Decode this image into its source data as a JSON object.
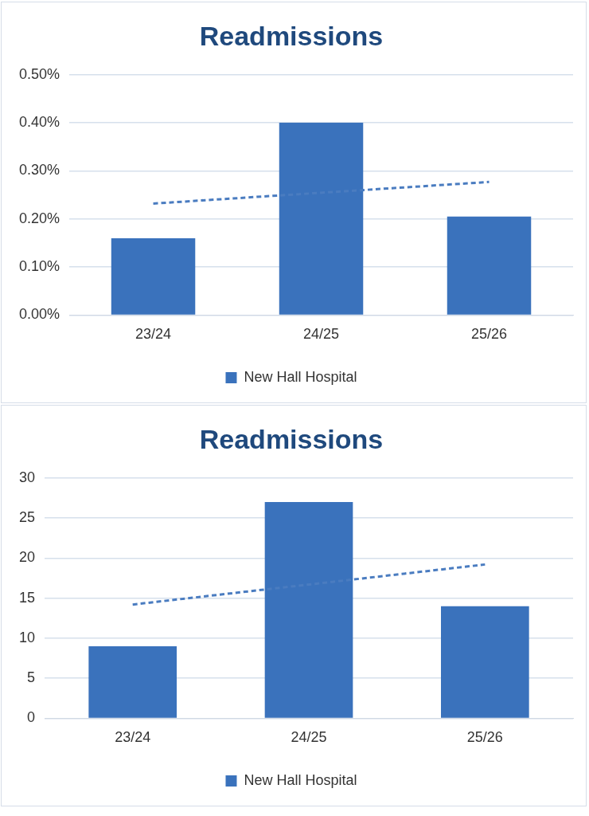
{
  "chart_data": [
    {
      "type": "bar",
      "title": "Readmissions",
      "categories": [
        "23/24",
        "24/25",
        "25/26"
      ],
      "series": [
        {
          "name": "New Hall Hospital",
          "color": "#3a72bc",
          "values": [
            0.16,
            0.4,
            0.205
          ]
        },
        {
          "type": "line",
          "x": [
            "23/24",
            "25/26"
          ],
          "values": [
            0.232,
            0.277
          ],
          "color": "#4a7cc0",
          "line_style": "dashed",
          "marker": "none"
        }
      ],
      "ylim": [
        0,
        0.5
      ],
      "yticks": [
        {
          "value": 0,
          "label": "0.00%"
        },
        {
          "value": 0.1,
          "label": "0.10%"
        },
        {
          "value": 0.2,
          "label": "0.20%"
        },
        {
          "value": 0.3,
          "label": "0.30%"
        },
        {
          "value": 0.4,
          "label": "0.40%"
        },
        {
          "value": 0.5,
          "label": "0.50%"
        }
      ],
      "grid": "y",
      "legend": "bottom"
    },
    {
      "type": "bar",
      "title": "Readmissions",
      "categories": [
        "23/24",
        "24/25",
        "25/26"
      ],
      "series": [
        {
          "name": "New Hall Hospital",
          "color": "#3a72bc",
          "values": [
            9,
            27,
            14
          ]
        },
        {
          "type": "line",
          "x": [
            "23/24",
            "25/26"
          ],
          "values": [
            14.2,
            19.2
          ],
          "color": "#4a7cc0",
          "line_style": "dashed",
          "marker": "none"
        }
      ],
      "ylim": [
        0,
        30
      ],
      "yticks": [
        0,
        5,
        10,
        15,
        20,
        25,
        30
      ],
      "grid": "y",
      "legend": "bottom"
    }
  ]
}
